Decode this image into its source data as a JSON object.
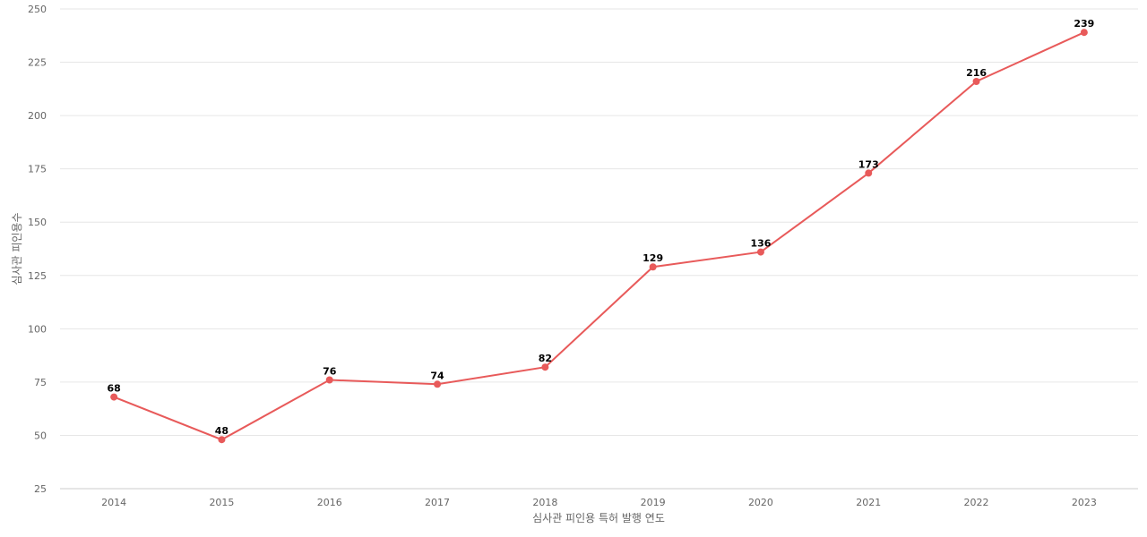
{
  "chart_data": {
    "type": "line",
    "title": "",
    "xlabel": "심사관 피인용 특허 발행 연도",
    "ylabel": "심사관 피인용수",
    "categories": [
      "2014",
      "2015",
      "2016",
      "2017",
      "2018",
      "2019",
      "2020",
      "2021",
      "2022",
      "2023"
    ],
    "series": [
      {
        "values": [
          68,
          48,
          76,
          74,
          82,
          129,
          136,
          173,
          216,
          239
        ],
        "color": "#e85a5a"
      }
    ],
    "ylim": [
      25,
      250
    ],
    "yticks": [
      25,
      50,
      75,
      100,
      125,
      150,
      175,
      200,
      225,
      250
    ],
    "grid": true,
    "legend": "none",
    "data_labels": true
  }
}
